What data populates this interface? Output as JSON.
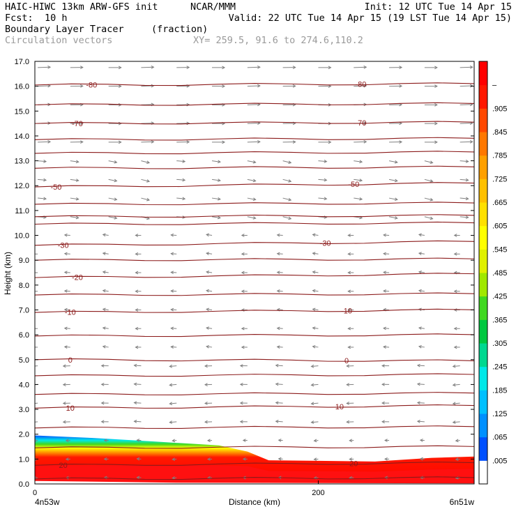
{
  "header": {
    "model": "HAIC-HIWC 13km ARW-GFS init",
    "org": "NCAR/MMM",
    "init": "Init: 12 UTC Tue 14 Apr 15",
    "fcst_label": "Fcst:",
    "fcst_value": "10 h",
    "valid": "Valid: 22 UTC Tue 14 Apr 15 (19 LST Tue 14 Apr 15)",
    "field": "Boundary Layer Tracer",
    "field_units": "(fraction)",
    "overlay": "Circulation vectors",
    "xy": "XY= 259.5, 91.6 to 274.6,110.2"
  },
  "chart_data": {
    "type": "heatmap",
    "ylabel": "Height (km)",
    "xlabel": "Distance (km)",
    "x_left_label": "4n53w",
    "x_right_label": "6n51w",
    "xlim": [
      0,
      310
    ],
    "ylim": [
      0,
      17
    ],
    "x_ticks": [
      0,
      200
    ],
    "y_ticks": [
      "0.0",
      "1.0",
      "2.0",
      "3.0",
      "4.0",
      "5.0",
      "6.0",
      "7.0",
      "8.0",
      "9.0",
      "10.0",
      "11.0",
      "12.0",
      "13.0",
      "14.0",
      "15.0",
      "16.0",
      "17.0"
    ],
    "colorbar": {
      "labels": [
        ".005",
        ".065",
        ".125",
        ".185",
        ".245",
        ".305",
        ".365",
        ".425",
        ".485",
        ".545",
        ".605",
        ".665",
        ".725",
        ".785",
        ".845",
        ".905",
        "–"
      ],
      "colors": [
        "#ffffff",
        "#0050ff",
        "#0090ff",
        "#00c0ff",
        "#00e8e8",
        "#00d890",
        "#00c840",
        "#40d820",
        "#a0e800",
        "#e0f000",
        "#ffff00",
        "#ffe000",
        "#ffc000",
        "#ffa000",
        "#ff7800",
        "#ff4800",
        "#ff1800",
        "#ff0000"
      ]
    },
    "tracer_top_km": [
      {
        "x": 0,
        "top": 1.95
      },
      {
        "x": 40,
        "top": 1.85
      },
      {
        "x": 80,
        "top": 1.72
      },
      {
        "x": 130,
        "top": 1.55
      },
      {
        "x": 150,
        "top": 1.3
      },
      {
        "x": 165,
        "top": 0.95
      },
      {
        "x": 200,
        "top": 0.93
      },
      {
        "x": 240,
        "top": 0.9
      },
      {
        "x": 280,
        "top": 1.05
      },
      {
        "x": 310,
        "top": 1.1
      }
    ],
    "temperature_contours": [
      {
        "value": 20,
        "label": "20",
        "y_left": 0.75,
        "y_right": 0.85
      },
      {
        "value": 10,
        "label": "10",
        "y_left": 3.05,
        "y_right": 3.15
      },
      {
        "value": 0,
        "label": "0",
        "y_left": 5.0,
        "y_right": 4.95
      },
      {
        "value": -10,
        "label": "-10",
        "y_left": 6.9,
        "y_right": 7.0
      },
      {
        "value": -20,
        "label": "-20",
        "y_left": 8.3,
        "y_right": 8.45
      },
      {
        "value": -30,
        "label": "-30",
        "y_left": 9.6,
        "y_right": 9.75
      },
      {
        "value": -50,
        "label": "-50",
        "y_left": 11.95,
        "y_right": 12.1
      },
      {
        "value": -70,
        "label": "-70",
        "y_left": 14.5,
        "y_right": 14.55
      },
      {
        "value": -80,
        "label": "-80",
        "y_left": 16.05,
        "y_right": 16.1
      }
    ],
    "extra_contour_heights_km": [
      0.2,
      1.45,
      2.25,
      3.6,
      4.35,
      5.95,
      7.6,
      9.0,
      10.45,
      10.75,
      11.25,
      12.7,
      13.3,
      13.85,
      15.25
    ],
    "label_positions": {
      "left_x_km": [
        20,
        25,
        25,
        25,
        30,
        20,
        15,
        30,
        40
      ],
      "right_x_km": [
        225,
        215,
        220,
        220,
        0,
        205,
        225,
        230,
        230
      ]
    }
  }
}
